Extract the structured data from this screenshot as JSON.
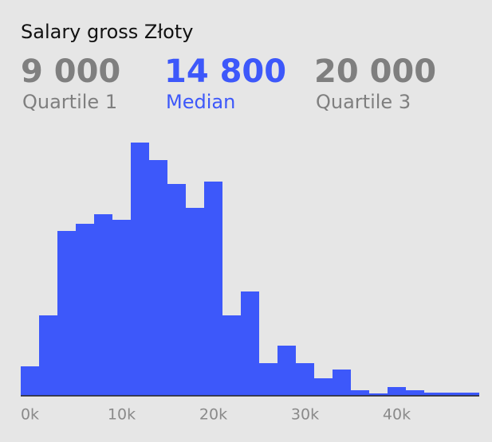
{
  "chart_data": {
    "type": "histogram",
    "title": "Salary gross Złoty",
    "stats": [
      {
        "value": "9 000",
        "label": "Quartile 1",
        "color": "#7f7f7f"
      },
      {
        "value": "14 800",
        "label": "Median",
        "color": "#3d58fa"
      },
      {
        "value": "20 000",
        "label": "Quartile 3",
        "color": "#7f7f7f"
      }
    ],
    "bins": [
      -1000,
      1000,
      3000,
      5000,
      7000,
      9000,
      11000,
      13000,
      15000,
      17000,
      19000,
      21000,
      23000,
      25000,
      27000,
      29000,
      31000,
      33000,
      35000,
      37000,
      39000,
      41000,
      43000,
      45000,
      47000,
      49000
    ],
    "values": [
      37,
      101,
      207,
      216,
      228,
      221,
      318,
      296,
      266,
      236,
      269,
      101,
      131,
      41,
      63,
      41,
      22,
      33,
      7,
      3,
      11,
      7,
      4,
      4,
      4
    ],
    "color": "#3d58fa",
    "xlim": [
      -1000,
      49000
    ],
    "xticks": [
      {
        "value": 0,
        "label": "0k"
      },
      {
        "value": 10000,
        "label": "10k"
      },
      {
        "value": 20000,
        "label": "20k"
      },
      {
        "value": 30000,
        "label": "30k"
      },
      {
        "value": 40000,
        "label": "40k"
      }
    ],
    "ylim": [
      0,
      320
    ]
  }
}
